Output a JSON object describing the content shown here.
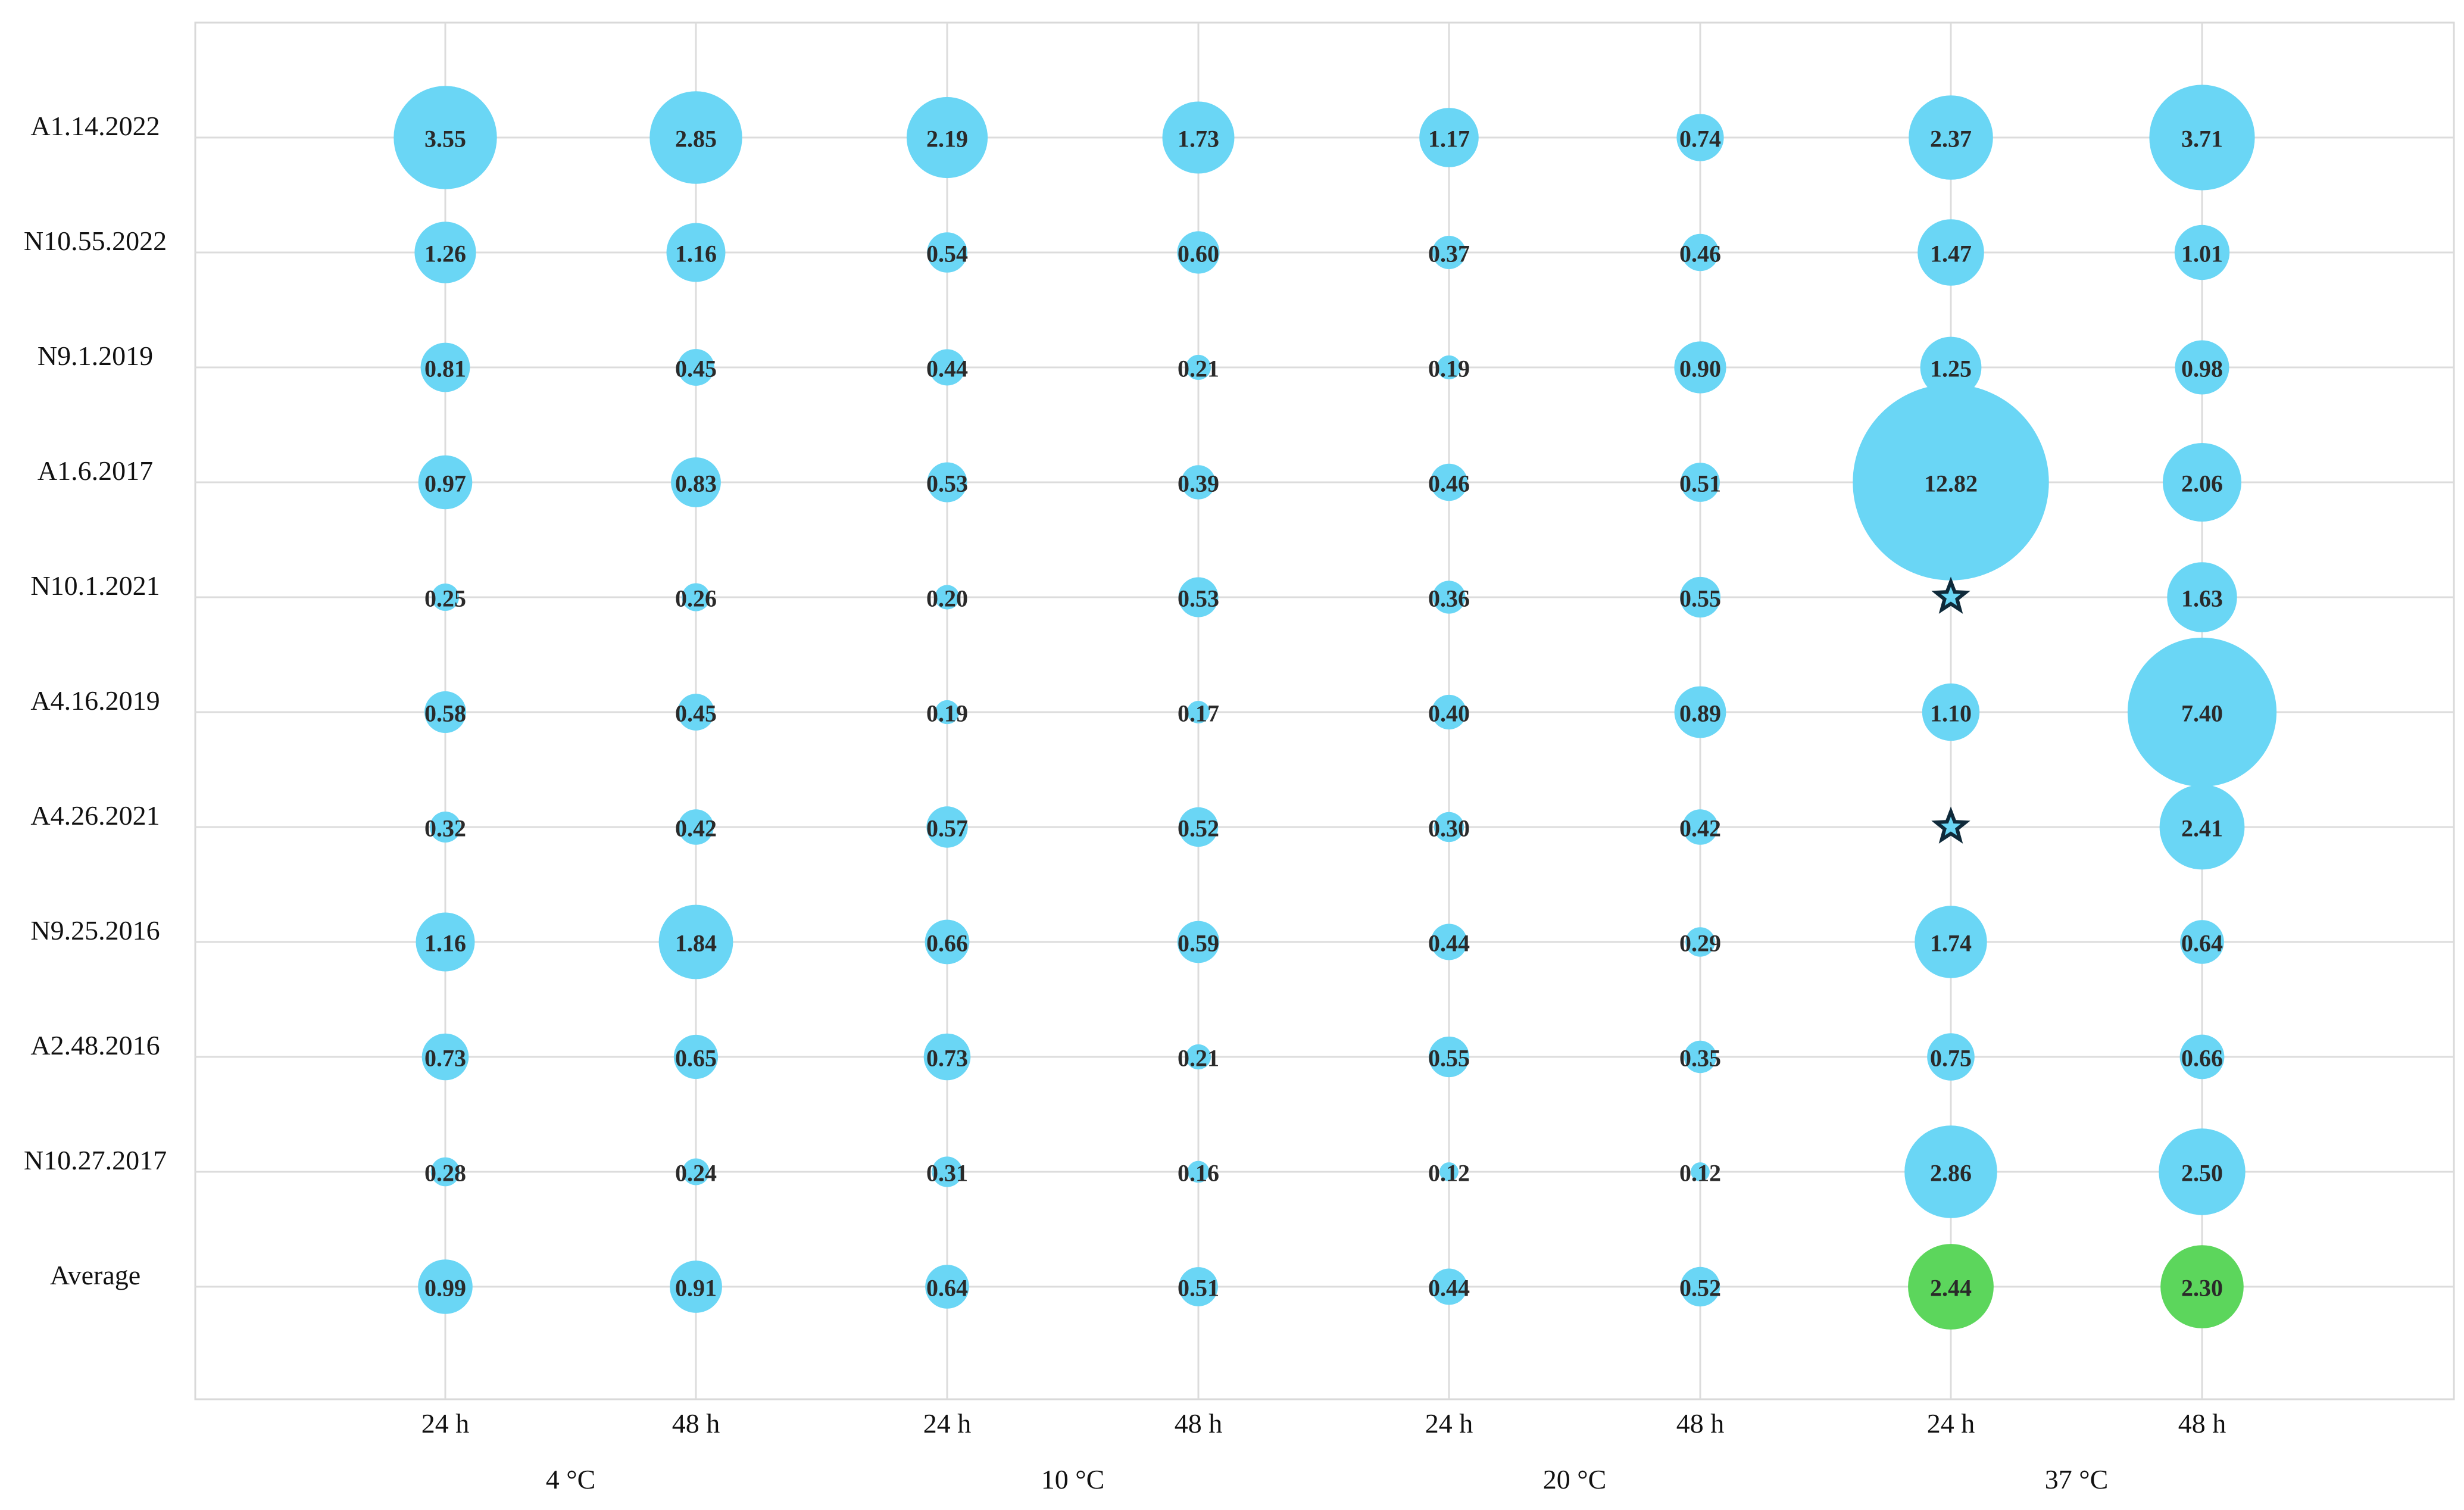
{
  "chart_data": {
    "type": "bubble",
    "title": "",
    "rows": [
      "A1.14.2022",
      "N10.55.2022",
      "N9.1.2019",
      "A1.6.2017",
      "N10.1.2021",
      "A4.16.2019",
      "A4.26.2021",
      "N9.25.2016",
      "A2.48.2016",
      "N10.27.2017",
      "Average"
    ],
    "columns": [
      "24 h",
      "48 h",
      "24 h",
      "48 h",
      "24 h",
      "48 h",
      "24 h",
      "48 h"
    ],
    "groups": [
      {
        "label": "4 °C",
        "columns": [
          0,
          1
        ]
      },
      {
        "label": "10 °C",
        "columns": [
          2,
          3
        ]
      },
      {
        "label": "20 °C",
        "columns": [
          4,
          5
        ]
      },
      {
        "label": "37 °C",
        "columns": [
          6,
          7
        ]
      }
    ],
    "values": [
      [
        "3.55",
        "2.85",
        "2.19",
        "1.73",
        "1.17",
        "0.74",
        "2.37",
        "3.71"
      ],
      [
        "1.26",
        "1.16",
        "0.54",
        "0.60",
        "0.37",
        "0.46",
        "1.47",
        "1.01"
      ],
      [
        "0.81",
        "0.45",
        "0.44",
        "0.21",
        "0.19",
        "0.90",
        "1.25",
        "0.98"
      ],
      [
        "0.97",
        "0.83",
        "0.53",
        "0.39",
        "0.46",
        "0.51",
        "12.82",
        "2.06"
      ],
      [
        "0.25",
        "0.26",
        "0.20",
        "0.53",
        "0.36",
        "0.55",
        "star",
        "1.63"
      ],
      [
        "0.58",
        "0.45",
        "0.19",
        "0.17",
        "0.40",
        "0.89",
        "1.10",
        "7.40"
      ],
      [
        "0.32",
        "0.42",
        "0.57",
        "0.52",
        "0.30",
        "0.42",
        "star",
        "2.41"
      ],
      [
        "1.16",
        "1.84",
        "0.66",
        "0.59",
        "0.44",
        "0.29",
        "1.74",
        "0.64"
      ],
      [
        "0.73",
        "0.65",
        "0.73",
        "0.21",
        "0.55",
        "0.35",
        "0.75",
        "0.66"
      ],
      [
        "0.28",
        "0.24",
        "0.31",
        "0.16",
        "0.12",
        "0.12",
        "2.86",
        "2.50"
      ],
      [
        "0.99",
        "0.91",
        "0.64",
        "0.51",
        "0.44",
        "0.52",
        "2.44",
        "2.30"
      ]
    ],
    "highlight": [
      {
        "row": 10,
        "col": 6
      },
      {
        "row": 10,
        "col": 7
      }
    ],
    "colors": {
      "bubble": "#6ad6f5",
      "highlight": "#5cd65c",
      "grid": "#dcdcdc",
      "text": "#2a2a2a"
    }
  }
}
